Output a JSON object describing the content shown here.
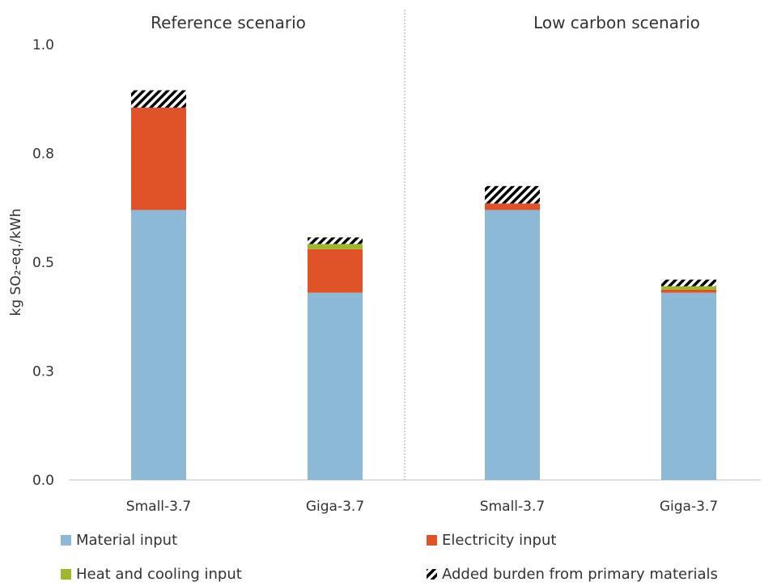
{
  "chart_data": {
    "type": "bar",
    "stacked": true,
    "panels": [
      {
        "title": "Reference scenario",
        "categories": [
          "Small-3.7",
          "Giga-3.7"
        ]
      },
      {
        "title": "Low carbon scenario",
        "categories": [
          "Small-3.7",
          "Giga-3.7"
        ]
      }
    ],
    "ylabel": "kg SO₂-eq./kWh",
    "ylim": [
      0,
      1.0
    ],
    "yticks": [
      "0.0",
      "0.3",
      "0.5",
      "0.8",
      "1.0"
    ],
    "grid": false,
    "legend_position": "bottom",
    "series": [
      {
        "name": "Material input",
        "color": "#8cbad6",
        "pattern": "solid",
        "values": [
          0.62,
          0.43,
          0.62,
          0.43
        ]
      },
      {
        "name": "Electricity input",
        "color": "#e05228",
        "pattern": "solid",
        "values": [
          0.235,
          0.1,
          0.015,
          0.007
        ]
      },
      {
        "name": "Heat and cooling input",
        "color": "#9db82c",
        "pattern": "solid",
        "values": [
          0.0,
          0.012,
          0.0,
          0.008
        ]
      },
      {
        "name": "Added burden from primary materials",
        "color": "#000000",
        "pattern": "hatch",
        "values": [
          0.04,
          0.015,
          0.04,
          0.015
        ]
      }
    ]
  }
}
